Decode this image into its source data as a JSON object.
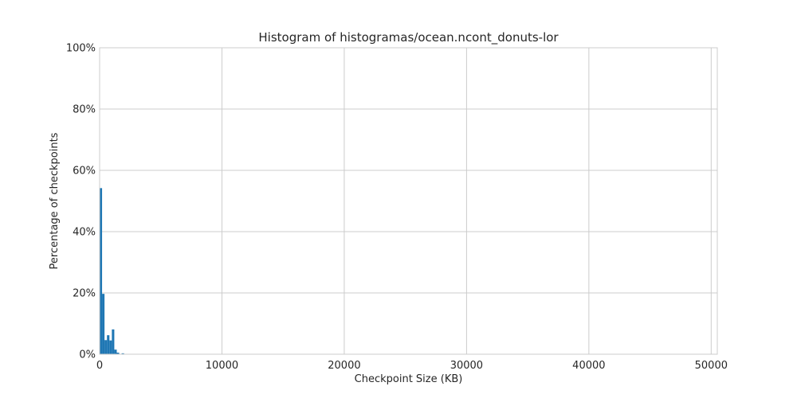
{
  "chart_data": {
    "type": "bar",
    "title": "Histogram of histogramas/ocean.ncont_donuts-lor",
    "xlabel": "Checkpoint Size (KB)",
    "ylabel": "Percentage of checkpoints",
    "xlim": [
      0,
      50500
    ],
    "ylim": [
      0,
      100
    ],
    "xticks": [
      0,
      10000,
      20000,
      30000,
      40000,
      50000
    ],
    "xtick_labels": [
      "0",
      "10000",
      "20000",
      "30000",
      "40000",
      "50000"
    ],
    "yticks": [
      0,
      20,
      40,
      60,
      80,
      100
    ],
    "ytick_labels": [
      "0%",
      "20%",
      "40%",
      "60%",
      "80%",
      "100%"
    ],
    "grid": true,
    "bar_color": "#1f77b4",
    "bins": [
      {
        "start": 0,
        "end": 200,
        "value": 54.2
      },
      {
        "start": 200,
        "end": 400,
        "value": 19.7
      },
      {
        "start": 400,
        "end": 600,
        "value": 4.6
      },
      {
        "start": 600,
        "end": 800,
        "value": 6.2
      },
      {
        "start": 800,
        "end": 1000,
        "value": 4.5
      },
      {
        "start": 1000,
        "end": 1200,
        "value": 8.1
      },
      {
        "start": 1200,
        "end": 1400,
        "value": 1.5
      },
      {
        "start": 1400,
        "end": 1600,
        "value": 0.5
      },
      {
        "start": 1600,
        "end": 1800,
        "value": 0.1
      },
      {
        "start": 1800,
        "end": 2000,
        "value": 0.3
      },
      {
        "start": 2000,
        "end": 2200,
        "value": 0.1
      }
    ]
  }
}
